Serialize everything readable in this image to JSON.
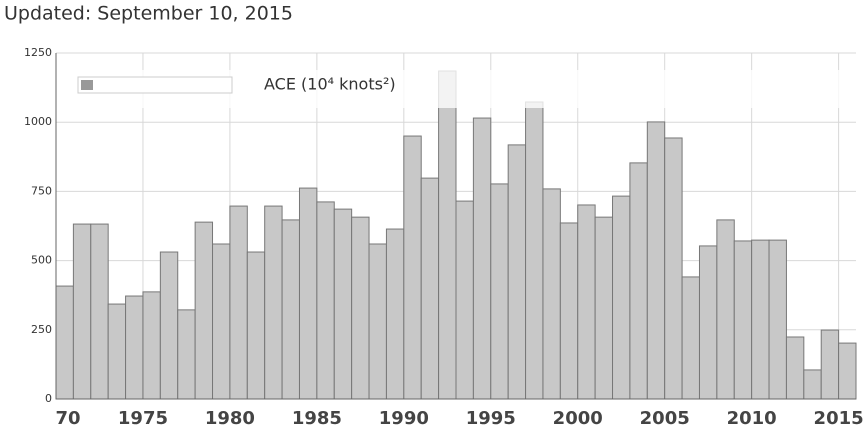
{
  "chart_data": {
    "type": "bar",
    "title": "Updated: September 10, 2015",
    "legend": "ACE (10⁴ knots²)",
    "color": "#c8c8c8",
    "x": [
      1970,
      1971,
      1972,
      1973,
      1974,
      1975,
      1976,
      1977,
      1978,
      1979,
      1980,
      1981,
      1982,
      1983,
      1984,
      1985,
      1986,
      1987,
      1988,
      1989,
      1990,
      1991,
      1992,
      1993,
      1994,
      1995,
      1996,
      1997,
      1998,
      1999,
      2000,
      2001,
      2002,
      2003,
      2004,
      2005,
      2006,
      2007,
      2008,
      2009,
      2010,
      2011,
      2012,
      2013,
      2014,
      2015
    ],
    "values": [
      408,
      632,
      632,
      343,
      372,
      387,
      531,
      322,
      639,
      560,
      697,
      531,
      697,
      647,
      762,
      712,
      686,
      657,
      560,
      614,
      950,
      798,
      1185,
      715,
      1015,
      777,
      918,
      1073,
      759,
      636,
      701,
      657,
      733,
      853,
      1001,
      943,
      441,
      553,
      647,
      571,
      574,
      574,
      224,
      105,
      249,
      202
    ],
    "xlim": [
      1970,
      2016
    ],
    "xticks": [
      {
        "value": 1970,
        "label": "70"
      },
      1975,
      1980,
      1985,
      1990,
      1995,
      2000,
      2005,
      2010,
      2015
    ],
    "ylim": [
      0,
      1250
    ],
    "yticks": [
      0,
      250,
      500,
      750,
      1000,
      1250
    ],
    "grid": true
  }
}
